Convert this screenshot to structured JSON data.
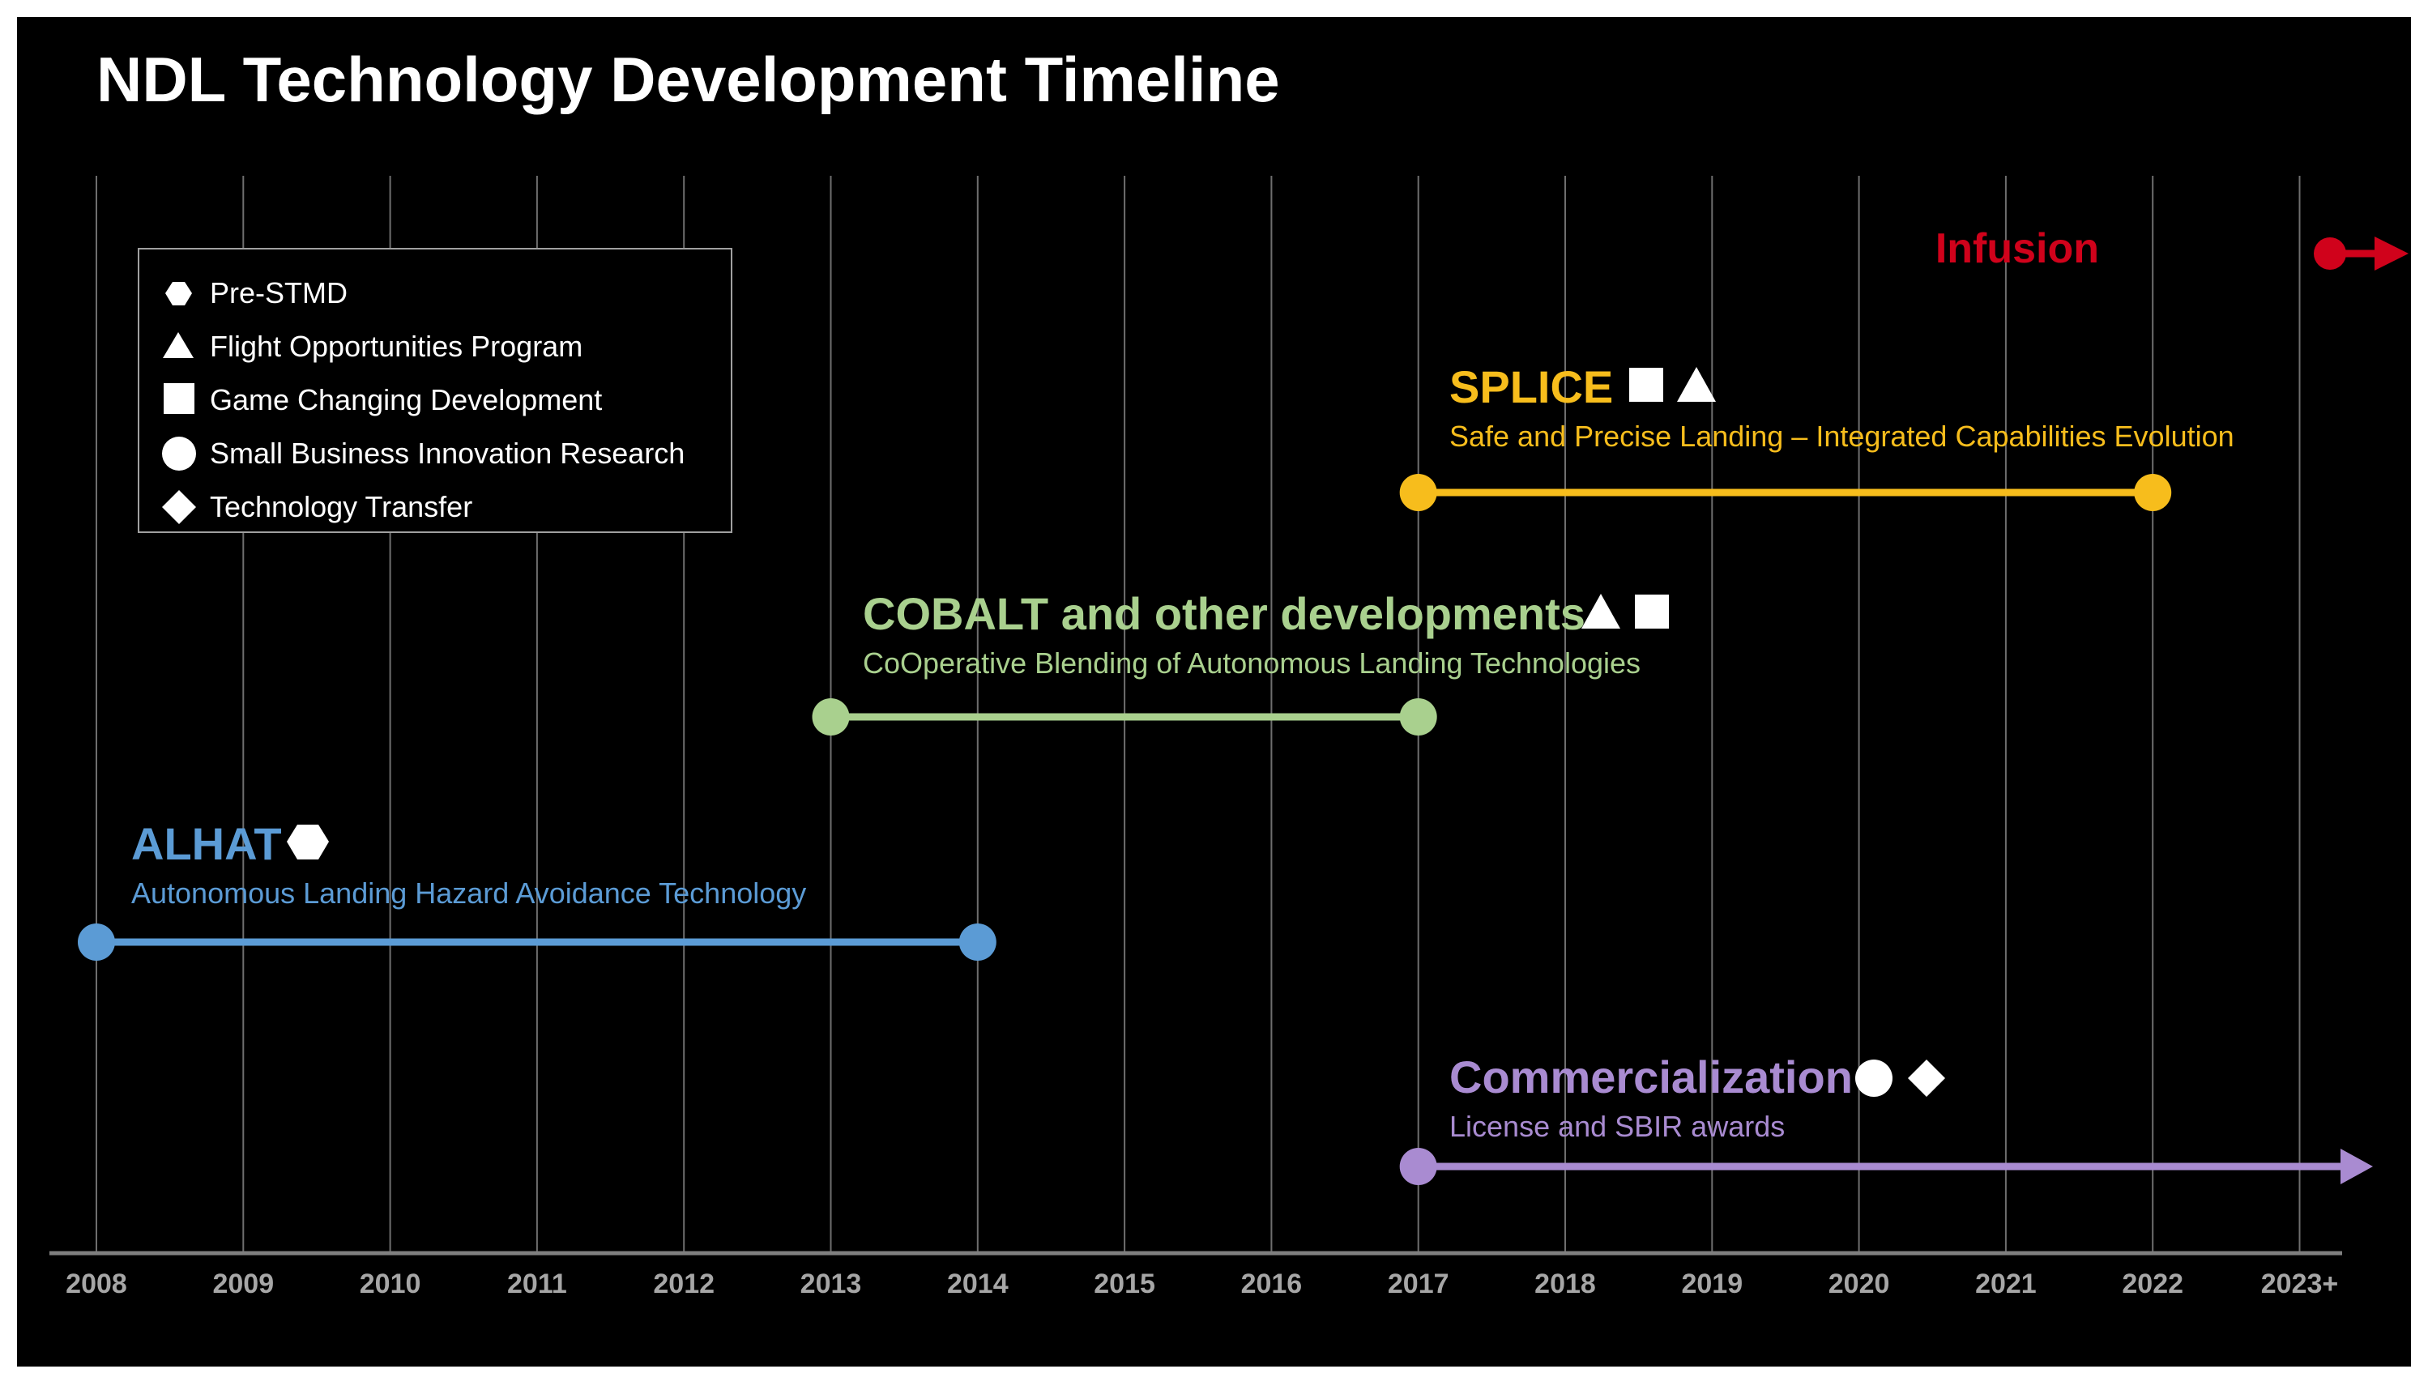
{
  "title": "NDL Technology Development Timeline",
  "axis": {
    "years": [
      "2008",
      "2009",
      "2010",
      "2011",
      "2012",
      "2013",
      "2014",
      "2015",
      "2016",
      "2017",
      "2018",
      "2019",
      "2020",
      "2021",
      "2022",
      "2023+"
    ]
  },
  "legend": {
    "items": [
      {
        "icon": "hexagon-icon",
        "label": "Pre-STMD"
      },
      {
        "icon": "triangle-icon",
        "label": "Flight Opportunities  Program"
      },
      {
        "icon": "square-icon",
        "label": "Game Changing Development"
      },
      {
        "icon": "circle-icon",
        "label": "Small Business Innovation  Research"
      },
      {
        "icon": "diamond-icon",
        "label": "Technology  Transfer"
      }
    ]
  },
  "projects": {
    "splice": {
      "name": "SPLICE",
      "subtitle": "Safe and Precise Landing – Integrated  Capabilities Evolution",
      "start": 2017,
      "end": 2022,
      "color": "#f7bd1c",
      "program_icons": [
        "square-icon",
        "triangle-icon"
      ]
    },
    "cobalt": {
      "name": "COBALT and other developments",
      "subtitle": "CoOperative Blending of Autonomous  Landing Technologies",
      "start": 2013,
      "end": 2017,
      "color": "#a9d08e",
      "program_icons": [
        "triangle-icon",
        "square-icon"
      ]
    },
    "alhat": {
      "name": "ALHAT",
      "subtitle": "Autonomous  Landing Hazard Avoidance Technology",
      "start": 2008,
      "end": 2014,
      "color": "#5b9bd5",
      "program_icons": [
        "hexagon-icon"
      ]
    },
    "commercialization": {
      "name": "Commercialization",
      "subtitle": "License and SBIR awards",
      "start": 2017,
      "end": "ongoing",
      "color": "#a98bd1",
      "program_icons": [
        "circle-icon",
        "diamond-icon"
      ]
    }
  },
  "infusion": {
    "label": "Infusion",
    "year": 2023,
    "color": "#d0021b"
  },
  "colors": {
    "background": "#000000",
    "gridline": "#6e6e6e",
    "axis": "#7f7f7f",
    "text": "#ffffff",
    "tick_label": "#a6a6a6"
  }
}
